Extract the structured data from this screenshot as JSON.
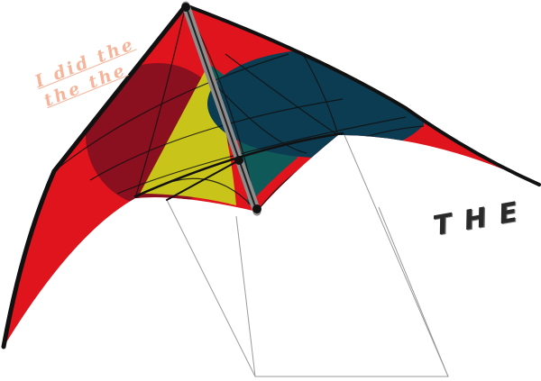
{
  "image": {
    "subject": "delta-stunt-kite",
    "colors": {
      "sail_red": "#e0141c",
      "sail_dark_red": "#8a0f1f",
      "panel_yellow": "#c8c41a",
      "panel_teal": "#0f5a58",
      "panel_navy": "#0c3c52",
      "spine_grey": "#8d8d8d",
      "frame_black": "#111111",
      "bridle_grey": "#9a9a9a",
      "graffiti_peach": "#f6b49b",
      "text_dark": "#2a2a2a"
    }
  },
  "overlay_text": {
    "graffiti_line1": "I   did   the",
    "graffiti_line2": "the   the",
    "kite_label": "THE"
  }
}
